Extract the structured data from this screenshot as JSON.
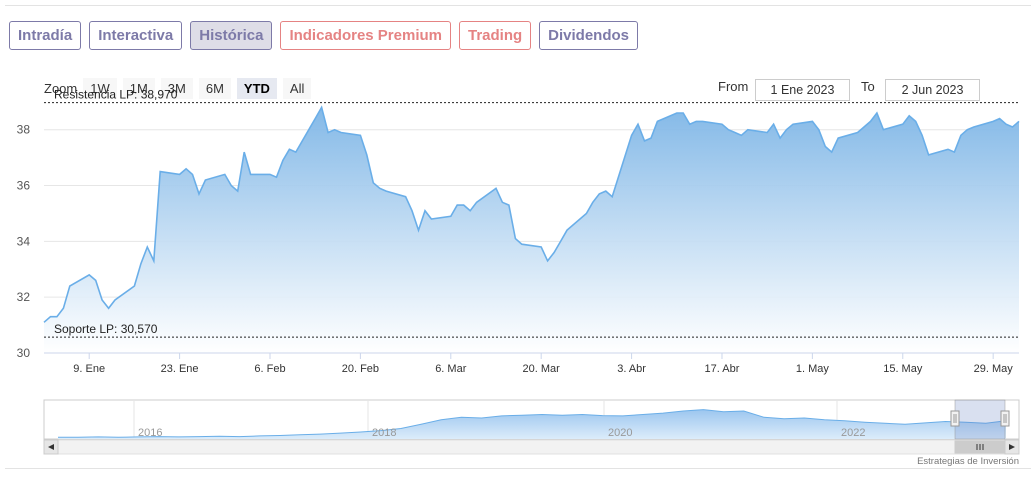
{
  "tabs": [
    {
      "label": "Intradía",
      "active": false,
      "accent": "#7d7aa8"
    },
    {
      "label": "Interactiva",
      "active": false,
      "accent": "#7d7aa8"
    },
    {
      "label": "Histórica",
      "active": true,
      "accent": "#7d7aa8"
    },
    {
      "label": "Indicadores Premium",
      "active": false,
      "accent": "#e58383"
    },
    {
      "label": "Trading",
      "active": false,
      "accent": "#e58383"
    },
    {
      "label": "Dividendos",
      "active": false,
      "accent": "#7d7aa8"
    }
  ],
  "zoom": {
    "label": "Zoom",
    "buttons": [
      "1W",
      "1M",
      "3M",
      "6M",
      "YTD",
      "All"
    ],
    "selected": "YTD"
  },
  "range": {
    "from_label": "From",
    "from_value": "1 Ene 2023",
    "to_label": "To",
    "to_value": "2 Jun 2023"
  },
  "credit": "Estrategias de Inversión",
  "colors": {
    "line": "#6aaee8",
    "fill_top": "#7db5e6",
    "fill_bottom": "#ffffff"
  },
  "chart_data": {
    "type": "area",
    "x_start": "2023-01-02",
    "x_end": "2023-06-02",
    "ylim": [
      30,
      38.6
    ],
    "y_ticks": [
      "30",
      "32",
      "34",
      "36",
      "38"
    ],
    "x_ticks": [
      {
        "label": "9. Ene",
        "date": "2023-01-09"
      },
      {
        "label": "23. Ene",
        "date": "2023-01-23"
      },
      {
        "label": "6. Feb",
        "date": "2023-02-06"
      },
      {
        "label": "20. Feb",
        "date": "2023-02-20"
      },
      {
        "label": "6. Mar",
        "date": "2023-03-06"
      },
      {
        "label": "20. Mar",
        "date": "2023-03-20"
      },
      {
        "label": "3. Abr",
        "date": "2023-04-03"
      },
      {
        "label": "17. Abr",
        "date": "2023-04-17"
      },
      {
        "label": "1. May",
        "date": "2023-05-01"
      },
      {
        "label": "15. May",
        "date": "2023-05-15"
      },
      {
        "label": "29. May",
        "date": "2023-05-29"
      }
    ],
    "grid": true,
    "series": [
      {
        "x": [
          "2023-01-02",
          "2023-01-03",
          "2023-01-04",
          "2023-01-05",
          "2023-01-06",
          "2023-01-09",
          "2023-01-10",
          "2023-01-11",
          "2023-01-12",
          "2023-01-13",
          "2023-01-16",
          "2023-01-17",
          "2023-01-18",
          "2023-01-19",
          "2023-01-20",
          "2023-01-23",
          "2023-01-24",
          "2023-01-25",
          "2023-01-26",
          "2023-01-27",
          "2023-01-30",
          "2023-01-31",
          "2023-02-01",
          "2023-02-02",
          "2023-02-03",
          "2023-02-06",
          "2023-02-07",
          "2023-02-08",
          "2023-02-09",
          "2023-02-10",
          "2023-02-13",
          "2023-02-14",
          "2023-02-15",
          "2023-02-16",
          "2023-02-17",
          "2023-02-20",
          "2023-02-21",
          "2023-02-22",
          "2023-02-23",
          "2023-02-24",
          "2023-02-27",
          "2023-02-28",
          "2023-03-01",
          "2023-03-02",
          "2023-03-03",
          "2023-03-06",
          "2023-03-07",
          "2023-03-08",
          "2023-03-09",
          "2023-03-10",
          "2023-03-13",
          "2023-03-14",
          "2023-03-15",
          "2023-03-16",
          "2023-03-17",
          "2023-03-20",
          "2023-03-21",
          "2023-03-22",
          "2023-03-23",
          "2023-03-24",
          "2023-03-27",
          "2023-03-28",
          "2023-03-29",
          "2023-03-30",
          "2023-03-31",
          "2023-04-03",
          "2023-04-04",
          "2023-04-05",
          "2023-04-06",
          "2023-04-07",
          "2023-04-10",
          "2023-04-11",
          "2023-04-12",
          "2023-04-13",
          "2023-04-14",
          "2023-04-17",
          "2023-04-18",
          "2023-04-19",
          "2023-04-20",
          "2023-04-21",
          "2023-04-24",
          "2023-04-25",
          "2023-04-26",
          "2023-04-27",
          "2023-04-28",
          "2023-05-01",
          "2023-05-02",
          "2023-05-03",
          "2023-05-04",
          "2023-05-05",
          "2023-05-08",
          "2023-05-09",
          "2023-05-10",
          "2023-05-11",
          "2023-05-12",
          "2023-05-15",
          "2023-05-16",
          "2023-05-17",
          "2023-05-18",
          "2023-05-19",
          "2023-05-22",
          "2023-05-23",
          "2023-05-24",
          "2023-05-25",
          "2023-05-26",
          "2023-05-29",
          "2023-05-30",
          "2023-05-31",
          "2023-06-01",
          "2023-06-02"
        ],
        "values": [
          31.1,
          31.3,
          31.3,
          31.6,
          32.4,
          32.8,
          32.6,
          31.9,
          31.6,
          31.9,
          32.4,
          33.2,
          33.8,
          33.3,
          36.5,
          36.4,
          36.6,
          36.4,
          35.7,
          36.2,
          36.4,
          36.0,
          35.8,
          37.2,
          36.4,
          36.4,
          36.3,
          36.9,
          37.3,
          37.2,
          38.4,
          38.8,
          37.9,
          38.0,
          37.9,
          37.8,
          37.1,
          36.1,
          35.9,
          35.8,
          35.6,
          35.1,
          34.4,
          35.1,
          34.8,
          34.9,
          35.3,
          35.3,
          35.1,
          35.4,
          35.9,
          35.4,
          35.3,
          34.1,
          33.9,
          33.8,
          33.3,
          33.6,
          34.0,
          34.4,
          35.0,
          35.4,
          35.7,
          35.8,
          35.6,
          37.8,
          38.2,
          37.6,
          37.7,
          38.3,
          38.6,
          38.6,
          38.2,
          38.3,
          38.3,
          38.2,
          38.0,
          37.9,
          37.8,
          38.0,
          37.9,
          38.2,
          37.7,
          38.0,
          38.2,
          38.3,
          38.0,
          37.4,
          37.2,
          37.7,
          37.9,
          38.1,
          38.3,
          38.6,
          38.0,
          38.2,
          38.5,
          38.3,
          37.8,
          37.1,
          37.3,
          37.2,
          37.8,
          38.0,
          38.1,
          38.3,
          38.4,
          38.2,
          38.1,
          38.3
        ]
      }
    ],
    "annotations": [
      {
        "label": "Resistencia LP: 38,970",
        "y": 38.97
      },
      {
        "label": "Soporte LP: 30,570",
        "y": 30.57
      }
    ],
    "navigator": {
      "year_labels": [
        "2016",
        "2018",
        "2020",
        "2022"
      ]
    }
  }
}
